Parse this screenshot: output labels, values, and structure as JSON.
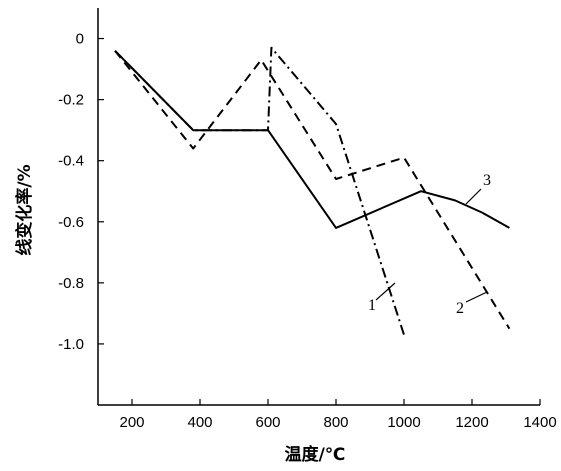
{
  "chart_data": {
    "type": "line",
    "title": "",
    "xlabel": "温度/℃",
    "ylabel": "线变化率/%",
    "xlim": [
      100,
      1400
    ],
    "ylim": [
      -1.2,
      0.1
    ],
    "xticks": [
      200,
      400,
      600,
      800,
      1000,
      1200,
      1400
    ],
    "yticks": [
      0,
      -0.2,
      -0.4,
      -0.6,
      -0.8,
      -1.0
    ],
    "ytick_labels": [
      "0",
      "-0.2",
      "-0.4",
      "-0.6",
      "-0.8",
      "-1.0"
    ],
    "grid": false,
    "series": [
      {
        "name": "1",
        "style": "dashdot",
        "color": "#000000",
        "points": [
          [
            150,
            -0.04
          ],
          [
            380,
            -0.3
          ],
          [
            600,
            -0.3
          ],
          [
            610,
            -0.03
          ],
          [
            800,
            -0.28
          ],
          [
            1000,
            -0.97
          ]
        ]
      },
      {
        "name": "2",
        "style": "dashed",
        "color": "#000000",
        "points": [
          [
            150,
            -0.04
          ],
          [
            380,
            -0.36
          ],
          [
            580,
            -0.07
          ],
          [
            800,
            -0.46
          ],
          [
            1000,
            -0.39
          ],
          [
            1310,
            -0.95
          ]
        ]
      },
      {
        "name": "3",
        "style": "solid",
        "color": "#000000",
        "points": [
          [
            150,
            -0.04
          ],
          [
            380,
            -0.3
          ],
          [
            600,
            -0.3
          ],
          [
            800,
            -0.62
          ],
          [
            1050,
            -0.5
          ],
          [
            1150,
            -0.53
          ],
          [
            1230,
            -0.57
          ],
          [
            1310,
            -0.62
          ]
        ]
      }
    ]
  }
}
